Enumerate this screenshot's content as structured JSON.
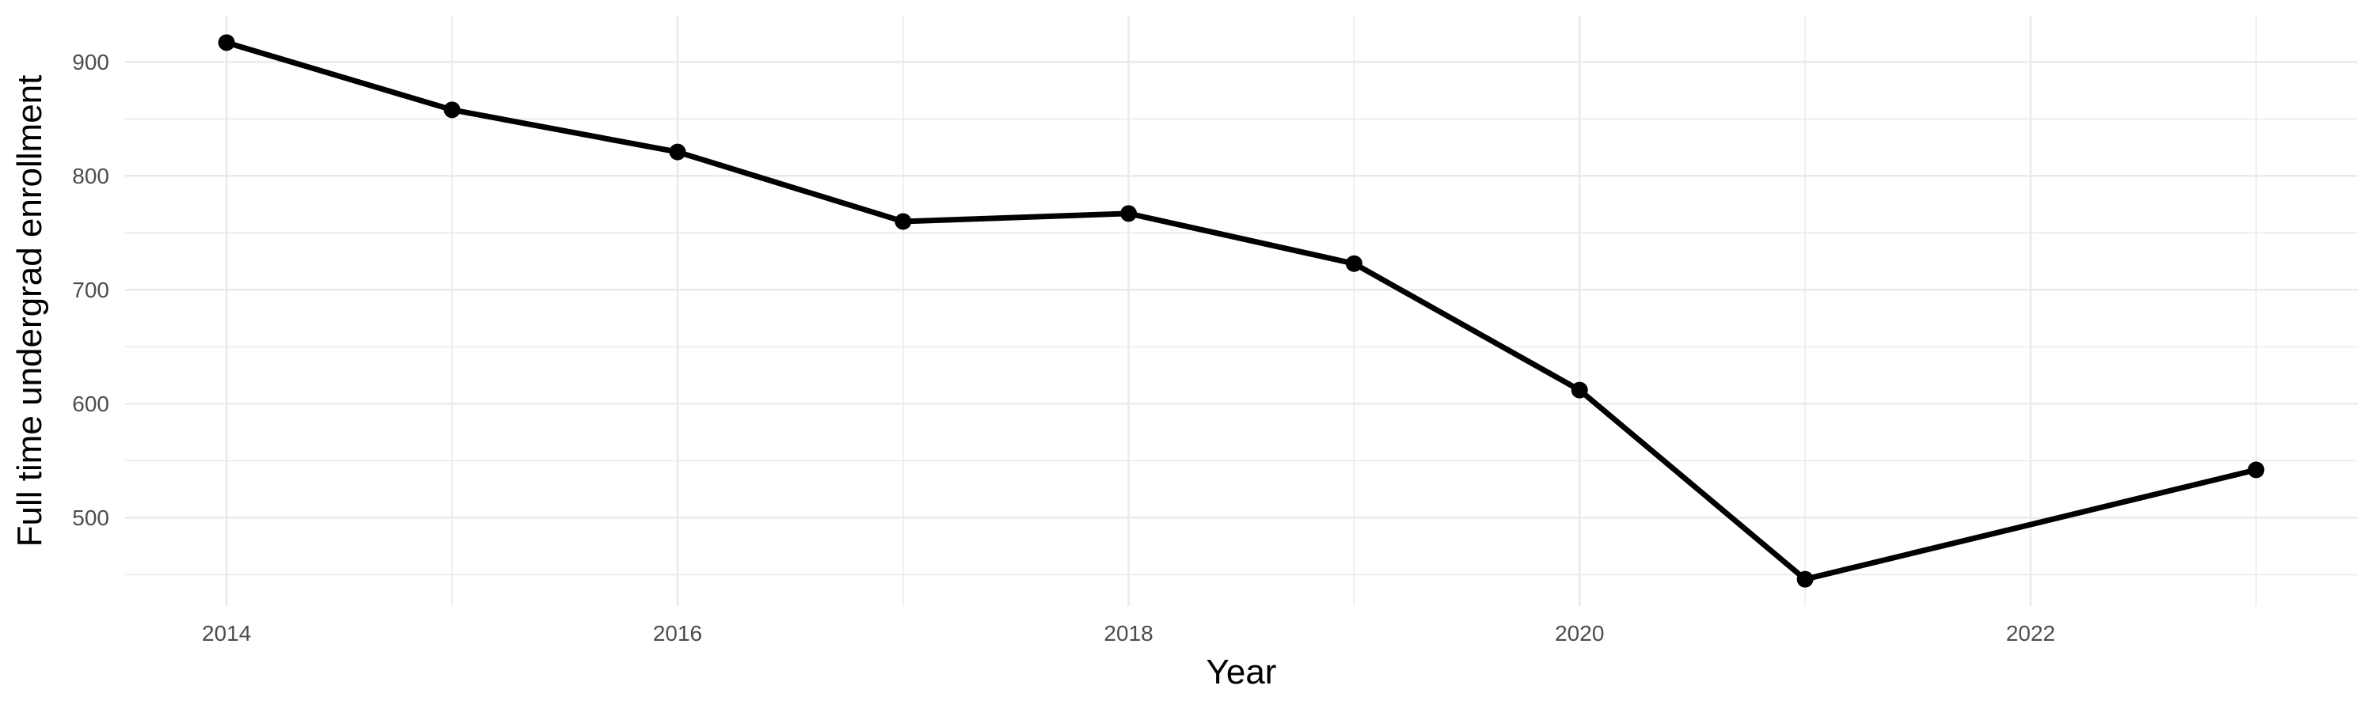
{
  "chart_data": {
    "type": "line",
    "title": "",
    "xlabel": "Year",
    "ylabel": "Full time undergrad enrollment",
    "series": [
      {
        "name": "full-time-undergrad-enrollment",
        "x": [
          2014,
          2015,
          2016,
          2017,
          2018,
          2019,
          2020,
          2021,
          2023
        ],
        "y": [
          917,
          858,
          821,
          760,
          767,
          723,
          612,
          446,
          542
        ]
      }
    ],
    "x_major_ticks": [
      2014,
      2016,
      2018,
      2020,
      2022
    ],
    "x_minor_gridlines": [
      2015,
      2017,
      2019,
      2021,
      2023
    ],
    "y_major_ticks": [
      500,
      600,
      700,
      800,
      900
    ],
    "y_minor_gridlines": [
      450,
      550,
      650,
      750,
      850
    ],
    "xlim": [
      2013.55,
      2023.45
    ],
    "ylim": [
      422.5,
      940.5
    ],
    "grid": "on",
    "legend": "none",
    "colors": {
      "background": "#FFFFFF",
      "line": "#000000",
      "marker": "#000000",
      "gridline": "#EBEBEB",
      "tick_label": "#4D4D4D",
      "axis_title": "#000000"
    }
  }
}
